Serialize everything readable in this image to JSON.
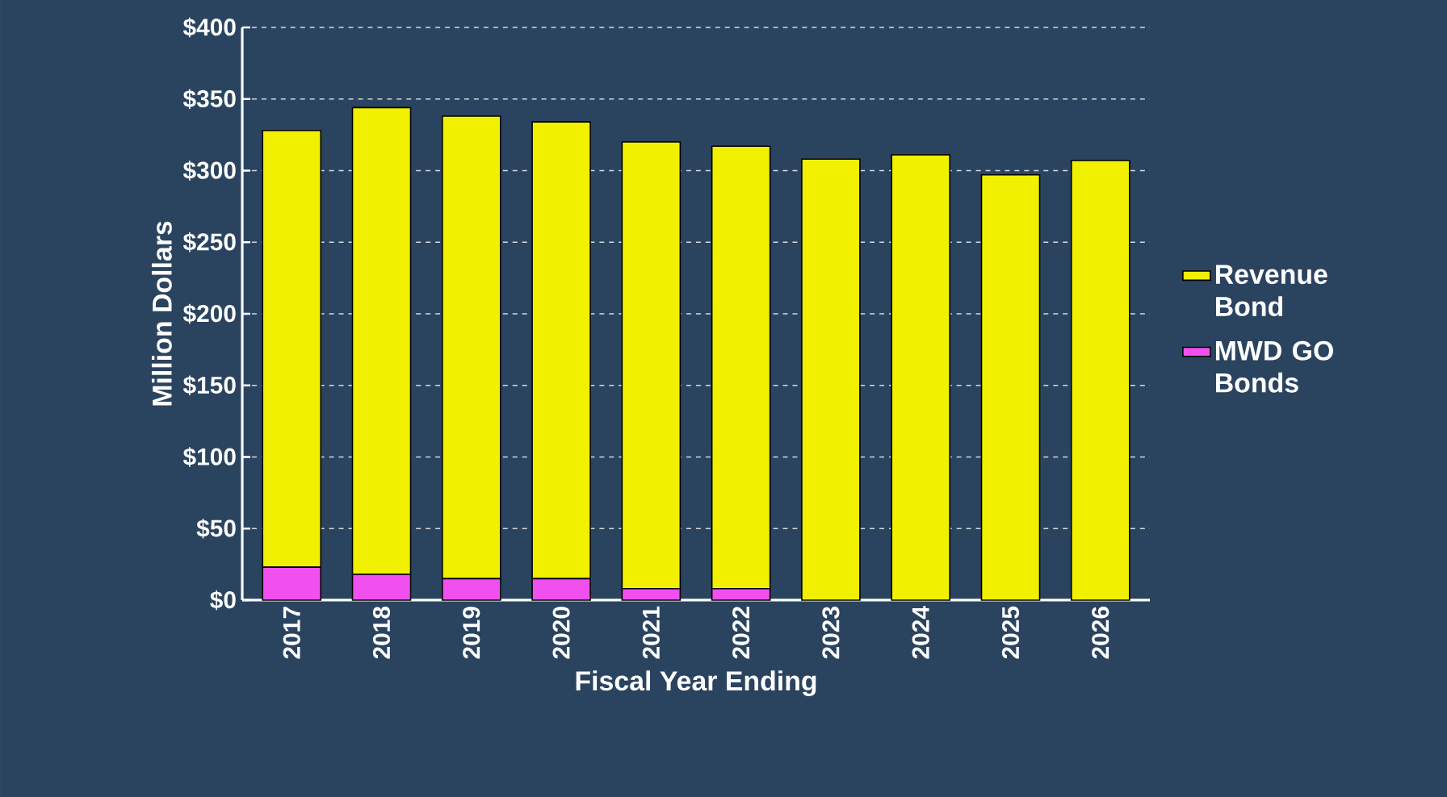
{
  "chart_data": {
    "type": "bar",
    "stacked": true,
    "xlabel": "Fiscal Year Ending",
    "ylabel": "Million Dollars",
    "categories": [
      "2017",
      "2018",
      "2019",
      "2020",
      "2021",
      "2022",
      "2023",
      "2024",
      "2025",
      "2026"
    ],
    "series": [
      {
        "name": "MWD GO Bonds",
        "color": "#f050f0",
        "values": [
          23,
          18,
          15,
          15,
          8,
          8,
          0,
          0,
          0,
          0
        ]
      },
      {
        "name": "Revenue Bond",
        "color": "#f0f000",
        "values": [
          305,
          326,
          323,
          319,
          312,
          309,
          308,
          311,
          297,
          307
        ]
      }
    ],
    "ylim": [
      0,
      400
    ],
    "yticks": [
      {
        "value": 0,
        "label": "$0"
      },
      {
        "value": 50,
        "label": "$50"
      },
      {
        "value": 100,
        "label": "$100"
      },
      {
        "value": 150,
        "label": "$150"
      },
      {
        "value": 200,
        "label": "$200"
      },
      {
        "value": 250,
        "label": "$250"
      },
      {
        "value": 300,
        "label": "$300"
      },
      {
        "value": 350,
        "label": "$350"
      },
      {
        "value": 400,
        "label": "$400"
      }
    ],
    "grid": "y",
    "legend": "right"
  }
}
